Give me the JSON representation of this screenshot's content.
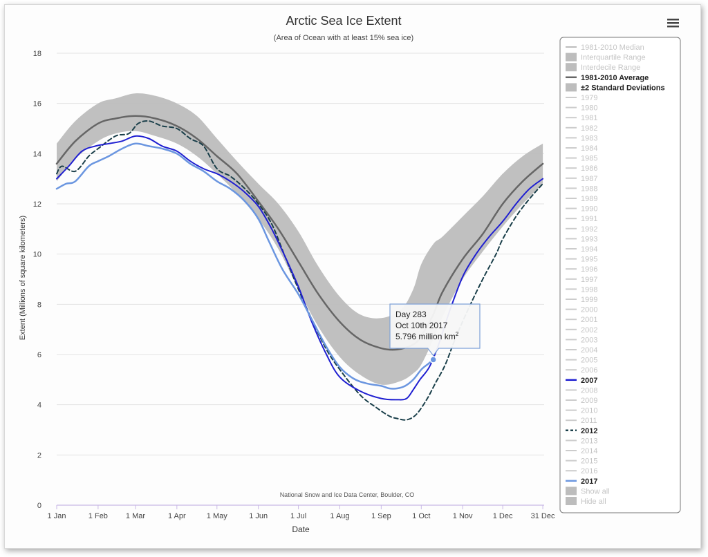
{
  "chart_data": {
    "type": "line",
    "title": "Arctic Sea Ice Extent",
    "subtitle": "(Area of Ocean with at least 15% sea ice)",
    "xlabel": "Date",
    "ylabel": "Extent (Millions of square kilometers)",
    "credit": "National Snow and Ice Data Center, Boulder, CO",
    "x_unit": "day of year",
    "xlim": [
      1,
      366
    ],
    "ylim": [
      0,
      18
    ],
    "y_ticks": [
      0,
      2,
      4,
      6,
      8,
      10,
      12,
      14,
      16,
      18
    ],
    "x_ticks": [
      {
        "label": "1 Jan",
        "day": 1
      },
      {
        "label": "1 Feb",
        "day": 32
      },
      {
        "label": "1 Mar",
        "day": 60
      },
      {
        "label": "1 Apr",
        "day": 91
      },
      {
        "label": "1 May",
        "day": 121
      },
      {
        "label": "1 Jun",
        "day": 152
      },
      {
        "label": "1 Jul",
        "day": 182
      },
      {
        "label": "1 Aug",
        "day": 213
      },
      {
        "label": "1 Sep",
        "day": 244
      },
      {
        "label": "1 Oct",
        "day": 274
      },
      {
        "label": "1 Nov",
        "day": 305
      },
      {
        "label": "1 Dec",
        "day": 335
      },
      {
        "label": "31 Dec",
        "day": 365
      }
    ],
    "grid": true,
    "legend_position": "right",
    "band": {
      "name": "±2 Standard Deviations",
      "color": "#bdbdbd",
      "x": [
        1,
        15,
        32,
        45,
        60,
        75,
        91,
        106,
        121,
        136,
        152,
        167,
        182,
        197,
        213,
        228,
        244,
        259,
        268,
        274,
        283,
        290,
        305,
        320,
        335,
        350,
        365
      ],
      "low": [
        12.9,
        13.8,
        14.5,
        14.8,
        14.9,
        14.7,
        14.4,
        13.9,
        13.2,
        12.4,
        11.4,
        10.2,
        8.6,
        7.1,
        5.9,
        5.2,
        4.8,
        4.95,
        5.25,
        5.6,
        6.6,
        7.5,
        9.0,
        10.1,
        11.1,
        12.0,
        12.8
      ],
      "high": [
        14.4,
        15.3,
        16.0,
        16.2,
        16.4,
        16.3,
        16.0,
        15.5,
        14.6,
        13.7,
        12.8,
        12.0,
        10.9,
        9.5,
        8.3,
        7.6,
        7.45,
        7.8,
        8.6,
        9.6,
        10.4,
        10.7,
        11.5,
        12.3,
        13.2,
        13.9,
        14.4
      ]
    },
    "series": [
      {
        "name": "1981-2010 Average",
        "color": "#666666",
        "dash": "",
        "width": 2.5,
        "x": [
          1,
          15,
          32,
          45,
          60,
          75,
          91,
          106,
          121,
          136,
          152,
          167,
          182,
          197,
          213,
          228,
          244,
          256,
          268,
          274,
          283,
          290,
          305,
          320,
          335,
          350,
          365
        ],
        "y": [
          13.6,
          14.5,
          15.2,
          15.4,
          15.5,
          15.4,
          15.1,
          14.6,
          13.9,
          13.2,
          12.1,
          11.0,
          9.7,
          8.4,
          7.3,
          6.6,
          6.25,
          6.2,
          6.4,
          6.75,
          7.6,
          8.5,
          9.8,
          10.8,
          12.0,
          12.9,
          13.6
        ]
      },
      {
        "name": "2012",
        "color": "#1a3f4a",
        "dash": "6,4",
        "width": 2,
        "x": [
          1,
          5,
          15,
          25,
          32,
          45,
          55,
          62,
          70,
          80,
          91,
          101,
          111,
          121,
          131,
          142,
          152,
          162,
          172,
          182,
          192,
          203,
          213,
          228,
          240,
          250,
          256,
          263,
          270,
          278,
          285,
          292,
          300,
          310,
          320,
          330,
          335,
          345,
          355,
          365
        ],
        "y": [
          13.2,
          13.5,
          13.3,
          13.9,
          14.2,
          14.7,
          14.8,
          15.2,
          15.3,
          15.1,
          15.0,
          14.6,
          14.3,
          13.4,
          13.1,
          12.6,
          12.0,
          11.2,
          9.9,
          8.6,
          7.4,
          6.2,
          5.4,
          4.4,
          3.9,
          3.55,
          3.45,
          3.4,
          3.6,
          4.2,
          4.9,
          5.6,
          6.7,
          7.9,
          9.0,
          10.0,
          10.6,
          11.5,
          12.2,
          12.8
        ]
      },
      {
        "name": "2007",
        "color": "#1f1fd1",
        "dash": "",
        "width": 2,
        "x": [
          1,
          10,
          20,
          30,
          40,
          50,
          60,
          70,
          80,
          91,
          101,
          111,
          121,
          131,
          141,
          152,
          162,
          172,
          182,
          192,
          203,
          213,
          228,
          244,
          256,
          263,
          268,
          273,
          280,
          287,
          295,
          305,
          315,
          325,
          335,
          345,
          355,
          365
        ],
        "y": [
          13.0,
          13.5,
          14.1,
          14.3,
          14.4,
          14.5,
          14.7,
          14.6,
          14.3,
          14.1,
          13.7,
          13.4,
          13.2,
          12.9,
          12.5,
          11.9,
          11.0,
          9.9,
          8.7,
          7.3,
          6.0,
          5.1,
          4.55,
          4.25,
          4.2,
          4.25,
          4.6,
          5.0,
          5.5,
          6.4,
          7.7,
          9.1,
          10.0,
          10.7,
          11.3,
          12.0,
          12.6,
          13.0
        ]
      },
      {
        "name": "2017",
        "color": "#6b96e0",
        "dash": "",
        "width": 2.5,
        "x": [
          1,
          8,
          15,
          25,
          32,
          40,
          50,
          60,
          70,
          80,
          91,
          101,
          111,
          121,
          131,
          142,
          152,
          160,
          170,
          182,
          192,
          203,
          213,
          223,
          233,
          244,
          250,
          256,
          262,
          268,
          274,
          279,
          283
        ],
        "y": [
          12.6,
          12.8,
          12.9,
          13.5,
          13.7,
          13.9,
          14.2,
          14.4,
          14.3,
          14.2,
          14.0,
          13.6,
          13.3,
          12.9,
          12.6,
          12.1,
          11.4,
          10.5,
          9.4,
          8.4,
          7.4,
          6.3,
          5.5,
          5.05,
          4.85,
          4.75,
          4.65,
          4.65,
          4.75,
          5.0,
          5.4,
          5.62,
          5.796
        ]
      }
    ],
    "highlight": {
      "series": "2017",
      "day": 283,
      "value": 5.796
    },
    "tooltip": {
      "line1": "Day 283",
      "line2": "Oct 10th 2017",
      "line3": "5.796 million km",
      "sup": "2",
      "border_color": "#7ea1d8"
    },
    "legend": [
      {
        "label": "1981-2010 Median",
        "symbol": "line",
        "color": "#bdbdbd",
        "state": "hidden"
      },
      {
        "label": "Interquartile Range",
        "symbol": "box",
        "color": "#bdbdbd",
        "state": "hidden"
      },
      {
        "label": "Interdecile Range",
        "symbol": "box",
        "color": "#bdbdbd",
        "state": "hidden"
      },
      {
        "label": "1981-2010 Average",
        "symbol": "line",
        "color": "#666666",
        "state": "shown"
      },
      {
        "label": "±2 Standard Deviations",
        "symbol": "box",
        "color": "#bdbdbd",
        "state": "shown"
      },
      {
        "label": "1979",
        "symbol": "line",
        "color": "#cccccc",
        "state": "hidden"
      },
      {
        "label": "1980",
        "symbol": "line",
        "color": "#cccccc",
        "state": "hidden"
      },
      {
        "label": "1981",
        "symbol": "line",
        "color": "#cccccc",
        "state": "hidden"
      },
      {
        "label": "1982",
        "symbol": "line",
        "color": "#cccccc",
        "state": "hidden"
      },
      {
        "label": "1983",
        "symbol": "line",
        "color": "#cccccc",
        "state": "hidden"
      },
      {
        "label": "1984",
        "symbol": "line",
        "color": "#cccccc",
        "state": "hidden"
      },
      {
        "label": "1985",
        "symbol": "line",
        "color": "#cccccc",
        "state": "hidden"
      },
      {
        "label": "1986",
        "symbol": "line",
        "color": "#cccccc",
        "state": "hidden"
      },
      {
        "label": "1987",
        "symbol": "line",
        "color": "#cccccc",
        "state": "hidden"
      },
      {
        "label": "1988",
        "symbol": "line",
        "color": "#cccccc",
        "state": "hidden"
      },
      {
        "label": "1989",
        "symbol": "line",
        "color": "#cccccc",
        "state": "hidden"
      },
      {
        "label": "1990",
        "symbol": "line",
        "color": "#cccccc",
        "state": "hidden"
      },
      {
        "label": "1991",
        "symbol": "line",
        "color": "#cccccc",
        "state": "hidden"
      },
      {
        "label": "1992",
        "symbol": "line",
        "color": "#cccccc",
        "state": "hidden"
      },
      {
        "label": "1993",
        "symbol": "line",
        "color": "#cccccc",
        "state": "hidden"
      },
      {
        "label": "1994",
        "symbol": "line",
        "color": "#cccccc",
        "state": "hidden"
      },
      {
        "label": "1995",
        "symbol": "line",
        "color": "#cccccc",
        "state": "hidden"
      },
      {
        "label": "1996",
        "symbol": "line",
        "color": "#cccccc",
        "state": "hidden"
      },
      {
        "label": "1997",
        "symbol": "line",
        "color": "#cccccc",
        "state": "hidden"
      },
      {
        "label": "1998",
        "symbol": "line",
        "color": "#cccccc",
        "state": "hidden"
      },
      {
        "label": "1999",
        "symbol": "line",
        "color": "#cccccc",
        "state": "hidden"
      },
      {
        "label": "2000",
        "symbol": "line",
        "color": "#cccccc",
        "state": "hidden"
      },
      {
        "label": "2001",
        "symbol": "line",
        "color": "#cccccc",
        "state": "hidden"
      },
      {
        "label": "2002",
        "symbol": "line",
        "color": "#cccccc",
        "state": "hidden"
      },
      {
        "label": "2003",
        "symbol": "line",
        "color": "#cccccc",
        "state": "hidden"
      },
      {
        "label": "2004",
        "symbol": "line",
        "color": "#cccccc",
        "state": "hidden"
      },
      {
        "label": "2005",
        "symbol": "line",
        "color": "#cccccc",
        "state": "hidden"
      },
      {
        "label": "2006",
        "symbol": "line",
        "color": "#cccccc",
        "state": "hidden"
      },
      {
        "label": "2007",
        "symbol": "line",
        "color": "#1f1fd1",
        "state": "shown"
      },
      {
        "label": "2008",
        "symbol": "line",
        "color": "#cccccc",
        "state": "hidden"
      },
      {
        "label": "2009",
        "symbol": "line",
        "color": "#cccccc",
        "state": "hidden"
      },
      {
        "label": "2010",
        "symbol": "line",
        "color": "#cccccc",
        "state": "hidden"
      },
      {
        "label": "2011",
        "symbol": "line",
        "color": "#cccccc",
        "state": "hidden"
      },
      {
        "label": "2012",
        "symbol": "dash",
        "color": "#1a3f4a",
        "state": "shown"
      },
      {
        "label": "2013",
        "symbol": "line",
        "color": "#cccccc",
        "state": "hidden"
      },
      {
        "label": "2014",
        "symbol": "line",
        "color": "#cccccc",
        "state": "hidden"
      },
      {
        "label": "2015",
        "symbol": "line",
        "color": "#cccccc",
        "state": "hidden"
      },
      {
        "label": "2016",
        "symbol": "line",
        "color": "#cccccc",
        "state": "hidden"
      },
      {
        "label": "2017",
        "symbol": "line",
        "color": "#6b96e0",
        "state": "shown"
      },
      {
        "label": "Show all",
        "symbol": "box",
        "color": "#bdbdbd",
        "state": "hidden"
      },
      {
        "label": "Hide all",
        "symbol": "box",
        "color": "#bdbdbd",
        "state": "hidden"
      }
    ]
  }
}
